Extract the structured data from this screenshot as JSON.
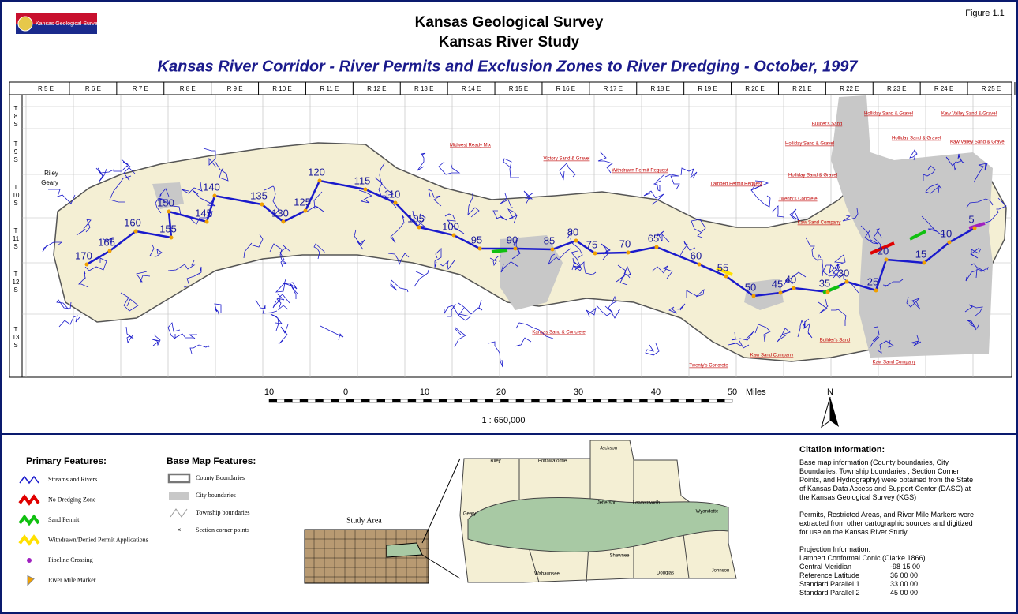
{
  "header": {
    "logo": "Kansas Geological Survey",
    "title": "Kansas Geological Survey",
    "subtitle": "Kansas River Study",
    "figure": "Figure 1.1",
    "map_title": "Kansas River Corridor - River Permits and Exclusion Zones to River Dredging - October, 1997"
  },
  "map": {
    "ranges": [
      "R 5 E",
      "R 6 E",
      "R 7 E",
      "R 8 E",
      "R 9 E",
      "R 10 E",
      "R 11 E",
      "R 12 E",
      "R 13 E",
      "R 14 E",
      "R 15 E",
      "R 16 E",
      "R 17 E",
      "R 18 E",
      "R 19 E",
      "R 20 E",
      "R 21 E",
      "R 22 E",
      "R 23 E",
      "R 24 E",
      "R 25 E"
    ],
    "townships": [
      "T 8 S",
      "T 9 S",
      "T 10 S",
      "T 11 S",
      "T 12 S",
      "T 13 S"
    ],
    "mile_markers": [
      170,
      165,
      160,
      155,
      150,
      145,
      140,
      135,
      130,
      125,
      120,
      115,
      110,
      105,
      100,
      95,
      90,
      85,
      80,
      75,
      70,
      65,
      60,
      55,
      50,
      45,
      40,
      35,
      30,
      25,
      20,
      15,
      10,
      5
    ],
    "permits": [
      "Holliday Sand & Gravel",
      "Kaw Valley Sand & Gravel",
      "Builder's Sand",
      "Holliday Sand & Gravel",
      "Holliday Sand & Gravel",
      "Kaw Valley Sand & Gravel",
      "Holliday Sand & Gravel",
      "Midwest Ready Mix",
      "Victory Sand & Gravel",
      "Withdrawn Permit Request",
      "Lambert Permit Request",
      "Twenty's Concrete",
      "Kaw Sand Company",
      "Kansas Sand & Concrete",
      "Kaw Sand Company",
      "Builder's Sand",
      "Kaw Sand Company",
      "Twenty's Concrete"
    ],
    "places": [
      "Riley",
      "Geary"
    ]
  },
  "scale": {
    "ticks": [
      "10",
      "0",
      "10",
      "20",
      "30",
      "40",
      "50"
    ],
    "unit": "Miles",
    "ratio": "1 : 650,000",
    "north": "N"
  },
  "legend": {
    "primary_title": "Primary Features:",
    "primary": [
      "Streams and Rivers",
      "No Dredging Zone",
      "Sand Permit",
      "Withdrawn/Denied Permit Applications",
      "Pipeline Crossing",
      "River Mile Marker"
    ],
    "base_title": "Base Map Features:",
    "base": [
      "County Boundaries",
      "City boundaries",
      "Township boundaries",
      "Section corner points"
    ]
  },
  "inset": {
    "study_area": "Study Area",
    "counties": [
      "Riley",
      "Pottawatomie",
      "Jackson",
      "Jefferson",
      "Leavenworth",
      "Wyandotte",
      "Geary",
      "Wabaunsee",
      "Shawnee",
      "Douglas",
      "Johnson"
    ]
  },
  "citation": {
    "title": "Citation Information:",
    "paragraphs": [
      "Base map information (County boundaries, City Boundaries, Township boundaries , Section Corner Points, and Hydrography) were obtained from the State of Kansas Data Access and Support Center (DASC) at the Kansas Geological Survey (KGS)",
      "Permits, Restricted Areas, and River Mile Markers were extracted from other cartographic sources and digitized for use on the Kansas River Study."
    ],
    "projection_title": "Projection Information:",
    "projection": "Lambert Conformal Conic (Clarke 1866)",
    "params": [
      [
        "Central Meridian",
        "-98 15 00"
      ],
      [
        "Reference Latitude",
        "36 00 00"
      ],
      [
        "Standard Parallel 1",
        "33 00 00"
      ],
      [
        "Standard Parallel 2",
        "45 00 00"
      ]
    ]
  }
}
